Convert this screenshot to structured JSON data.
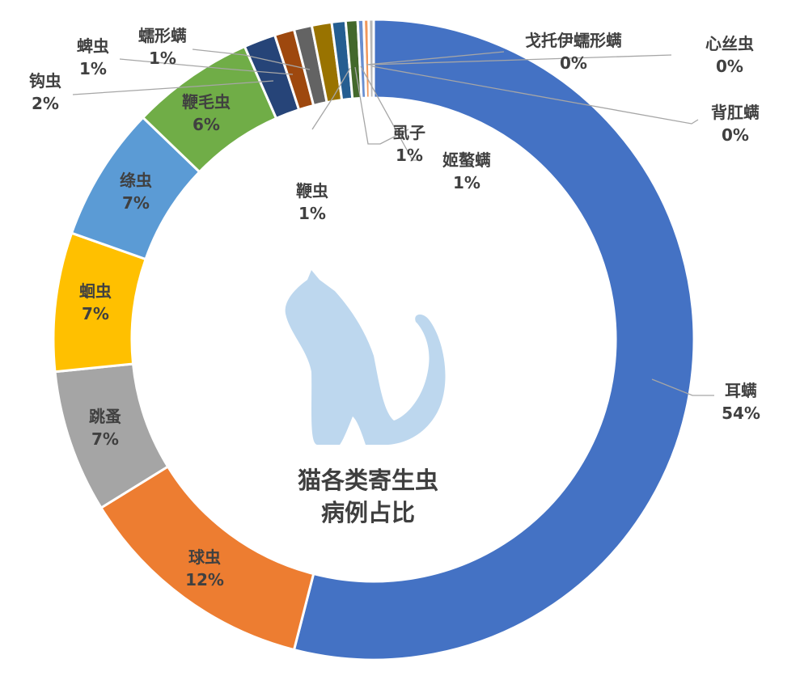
{
  "chart_data": {
    "type": "donut",
    "title": "猫各类寄生虫病例占比",
    "title_lines": [
      "猫各类寄生虫",
      "病例占比"
    ],
    "center_icon": "cat-silhouette-icon",
    "slices": [
      {
        "name": "耳螨",
        "label_pct": "54%",
        "value": 54.0,
        "color": "#4472c4"
      },
      {
        "name": "球虫",
        "label_pct": "12%",
        "value": 12.2,
        "color": "#ed7d31"
      },
      {
        "name": "跳蚤",
        "label_pct": "7%",
        "value": 7.2,
        "color": "#a5a5a5"
      },
      {
        "name": "蛔虫",
        "label_pct": "7%",
        "value": 7.0,
        "color": "#ffc000"
      },
      {
        "name": "绦虫",
        "label_pct": "7%",
        "value": 6.8,
        "color": "#5b9bd5"
      },
      {
        "name": "鞭毛虫",
        "label_pct": "6%",
        "value": 6.2,
        "color": "#70ad47"
      },
      {
        "name": "钩虫",
        "label_pct": "2%",
        "value": 1.6,
        "color": "#264478"
      },
      {
        "name": "蜱虫",
        "label_pct": "1%",
        "value": 1.0,
        "color": "#9e480e"
      },
      {
        "name": "蠕形螨",
        "label_pct": "1%",
        "value": 0.9,
        "color": "#636363"
      },
      {
        "name": "鞭虫",
        "label_pct": "1%",
        "value": 1.0,
        "color": "#997300"
      },
      {
        "name": "虱子",
        "label_pct": "1%",
        "value": 0.7,
        "color": "#255e91"
      },
      {
        "name": "姬螯螨",
        "label_pct": "1%",
        "value": 0.6,
        "color": "#43682b"
      },
      {
        "name": "戈托伊蠕形螨",
        "label_pct": "0%",
        "value": 0.3,
        "color": "#698ed0"
      },
      {
        "name": "心丝虫",
        "label_pct": "0%",
        "value": 0.25,
        "color": "#f1975a"
      },
      {
        "name": "背肛螨",
        "label_pct": "0%",
        "value": 0.25,
        "color": "#b7b7b7"
      }
    ],
    "center_icon_color": "#bdd7ee",
    "background": "#ffffff"
  }
}
